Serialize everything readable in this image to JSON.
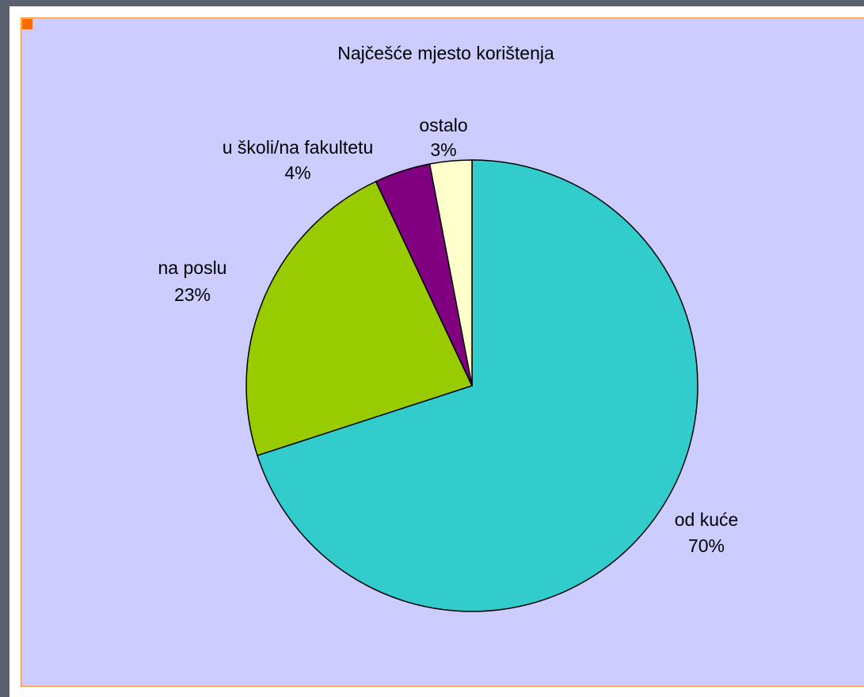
{
  "chart_data": {
    "type": "pie",
    "title": "Najčešće mjesto korištenja",
    "slices": [
      {
        "label": "od kuće",
        "value": 70,
        "value_label": "70%",
        "color": "#33cccc"
      },
      {
        "label": "na poslu",
        "value": 23,
        "value_label": "23%",
        "color": "#99cc00"
      },
      {
        "label": "u školi/na fakultetu",
        "value": 4,
        "value_label": "4%",
        "color": "#800080"
      },
      {
        "label": "ostalo",
        "value": 3,
        "value_label": "3%",
        "color": "#ffffcc"
      }
    ],
    "start_angle_deg": 0,
    "direction": "clockwise",
    "legend": "none",
    "plot_background": "#ccccff"
  }
}
